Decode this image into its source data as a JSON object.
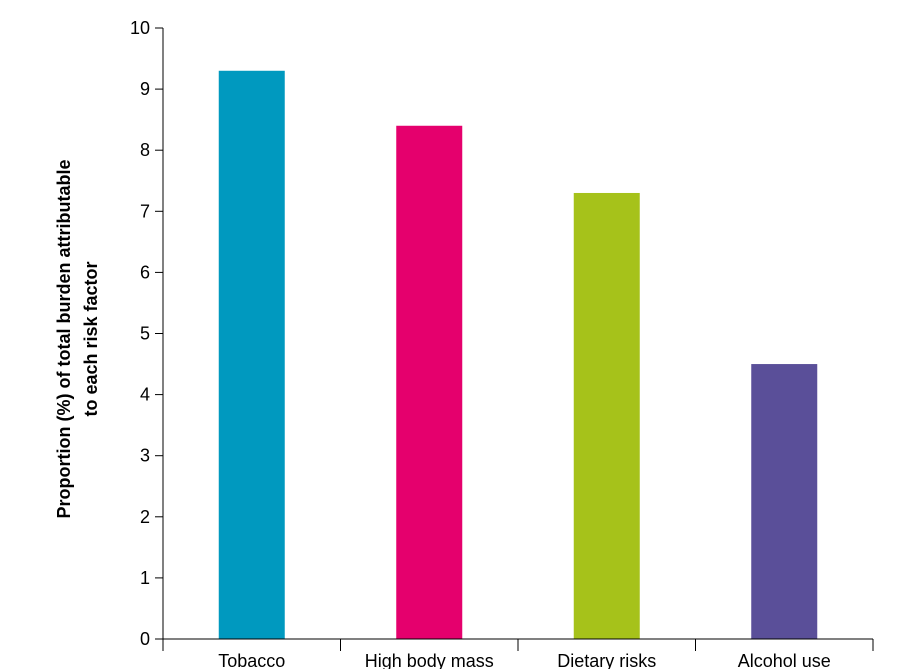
{
  "chart_data": {
    "type": "bar",
    "title": "",
    "xlabel": "",
    "ylabel_lines": [
      "Proportion (%) of total burden attributable",
      "to each risk factor"
    ],
    "categories": [
      "Tobacco",
      "High body mass",
      "Dietary risks",
      "Alcohol use"
    ],
    "values": [
      9.3,
      8.4,
      7.3,
      4.5
    ],
    "colors": [
      "#0099bf",
      "#e5006d",
      "#a6c21a",
      "#5a4f99"
    ],
    "ylim": [
      0,
      10
    ],
    "yticks": [
      0,
      1,
      2,
      3,
      4,
      5,
      6,
      7,
      8,
      9,
      10
    ],
    "grid": false,
    "legend": "none"
  }
}
